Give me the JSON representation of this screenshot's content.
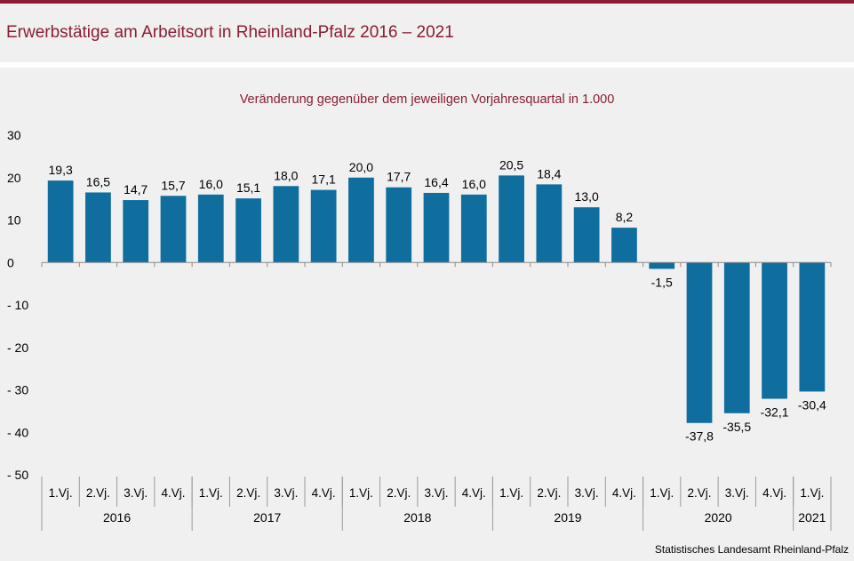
{
  "header": {
    "title": "Erwerbstätige am Arbeitsort in Rheinland-Pfalz 2016 – 2021"
  },
  "colors": {
    "accent": "#8c1c33",
    "bar": "#0f6e9e",
    "background": "#eff0ef"
  },
  "footer": {
    "source": "Statistisches Landesamt  Rheinland-Pfalz"
  },
  "chart_data": {
    "type": "bar",
    "subtitle": "Veränderung  gegenüber  dem jeweiligen Vorjahresquartal  in 1.000",
    "categories": [
      "1.Vj.",
      "2.Vj.",
      "3.Vj.",
      "4.Vj.",
      "1.Vj.",
      "2.Vj.",
      "3.Vj.",
      "4.Vj.",
      "1.Vj.",
      "2.Vj.",
      "3.Vj.",
      "4.Vj.",
      "1.Vj.",
      "2.Vj.",
      "3.Vj.",
      "4.Vj.",
      "1.Vj.",
      "2.Vj.",
      "3.Vj.",
      "4.Vj.",
      "1.Vj."
    ],
    "years": [
      {
        "label": "2016",
        "count": 4
      },
      {
        "label": "2017",
        "count": 4
      },
      {
        "label": "2018",
        "count": 4
      },
      {
        "label": "2019",
        "count": 4
      },
      {
        "label": "2020",
        "count": 4
      },
      {
        "label": "2021",
        "count": 1
      }
    ],
    "values": [
      19.3,
      16.5,
      14.7,
      15.7,
      16.0,
      15.1,
      18.0,
      17.1,
      20.0,
      17.7,
      16.4,
      16.0,
      20.5,
      18.4,
      13.0,
      8.2,
      -1.5,
      -37.8,
      -35.5,
      -32.1,
      -30.4
    ],
    "value_labels": [
      "19,3",
      "16,5",
      "14,7",
      "15,7",
      "16,0",
      "15,1",
      "18,0",
      "17,1",
      "20,0",
      "17,7",
      "16,4",
      "16,0",
      "20,5",
      "18,4",
      "13,0",
      "8,2",
      "-1,5",
      "-37,8",
      "-35,5",
      "-32,1",
      "-30,4"
    ],
    "yticks": [
      30,
      20,
      10,
      0,
      -10,
      -20,
      -30,
      -40,
      -50
    ],
    "ytick_labels": [
      "30",
      "20",
      "10",
      "0",
      "- 10",
      "- 20",
      "- 30",
      "- 40",
      "- 50"
    ],
    "ylim": [
      -50,
      30
    ],
    "grid": false,
    "legend": "none"
  }
}
